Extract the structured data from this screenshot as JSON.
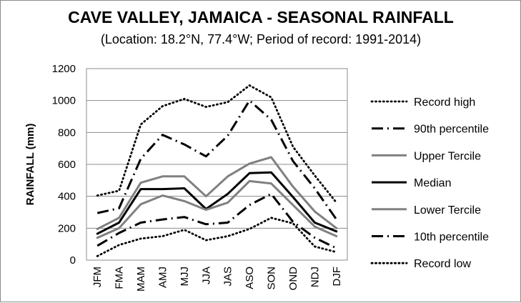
{
  "chart_data": {
    "type": "line",
    "title": "CAVE VALLEY, JAMAICA - SEASONAL RAINFALL",
    "subtitle": "(Location: 18.2°N, 77.4°W; Period of record: 1991-2014)",
    "xlabel": "",
    "ylabel": "RAINFALL (mm)",
    "ylim": [
      0,
      1200
    ],
    "yticks": [
      0,
      200,
      400,
      600,
      800,
      1000,
      1200
    ],
    "grid": "horizontal",
    "legend_position": "right",
    "categories": [
      "JFM",
      "FMA",
      "MAM",
      "AMJ",
      "MJJ",
      "JJA",
      "JAS",
      "ASO",
      "SON",
      "OND",
      "NDJ",
      "DJF"
    ],
    "series": [
      {
        "name": "Record high",
        "style": "dotted",
        "color": "#000000",
        "values": [
          405,
          435,
          850,
          965,
          1010,
          960,
          990,
          1095,
          1020,
          710,
          530,
          360
        ]
      },
      {
        "name": "90th percentile",
        "style": "dashdot",
        "color": "#000000",
        "values": [
          295,
          325,
          635,
          785,
          725,
          650,
          780,
          1000,
          880,
          620,
          450,
          255
        ]
      },
      {
        "name": "Upper Tercile",
        "style": "solid",
        "color": "#808080",
        "values": [
          195,
          265,
          485,
          525,
          525,
          400,
          525,
          605,
          645,
          460,
          305,
          200
        ]
      },
      {
        "name": "Median",
        "style": "solid",
        "color": "#000000",
        "values": [
          165,
          235,
          445,
          445,
          450,
          320,
          415,
          545,
          550,
          395,
          235,
          180
        ]
      },
      {
        "name": "Lower Tercile",
        "style": "solid",
        "color": "#808080",
        "values": [
          140,
          200,
          350,
          405,
          370,
          315,
          360,
          495,
          480,
          345,
          210,
          150
        ]
      },
      {
        "name": "10th percentile",
        "style": "dashdot",
        "color": "#000000",
        "values": [
          90,
          170,
          235,
          255,
          270,
          225,
          235,
          345,
          415,
          240,
          140,
          75
        ]
      },
      {
        "name": "Record low",
        "style": "dotted",
        "color": "#000000",
        "values": [
          25,
          95,
          135,
          150,
          190,
          125,
          150,
          195,
          265,
          230,
          85,
          50
        ]
      }
    ]
  }
}
